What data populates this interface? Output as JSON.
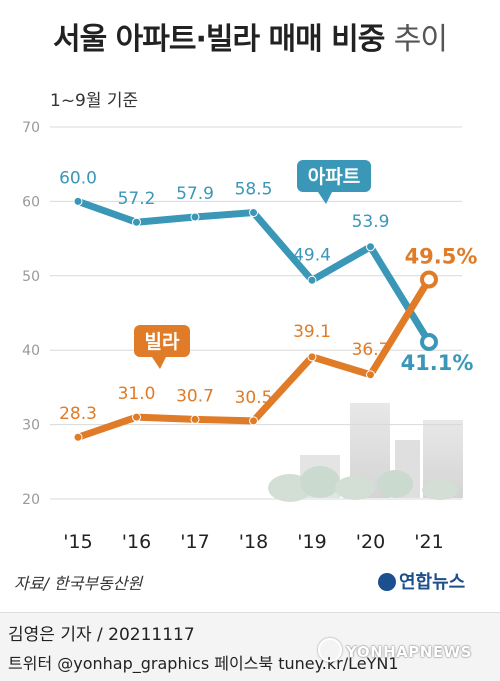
{
  "header": {
    "title_main": "서울 아파트·빌라 매매 비중",
    "title_light": "추이",
    "subtitle": "1~9월 기준"
  },
  "footer": {
    "source": "자료/ 한국부동산원",
    "logo": "연합뉴스",
    "credit_line1": "김영은 기자 / 20211117",
    "credit_line2": "트위터 @yonhap_graphics  페이스북 tuney.kr/LeYN1",
    "watermark": "YONHAPNEWS"
  },
  "colors": {
    "apartment": "#3a97b8",
    "villa": "#e07b27",
    "grid": "#d9d9d9",
    "axis_text": "#999999"
  },
  "chart_data": {
    "type": "line",
    "categories": [
      "'15",
      "'16",
      "'17",
      "'18",
      "'19",
      "'20",
      "'21"
    ],
    "series": [
      {
        "name": "아파트",
        "values": [
          60.0,
          57.2,
          57.9,
          58.5,
          49.4,
          53.9,
          41.1
        ],
        "labels": [
          "60.0",
          "57.2",
          "57.9",
          "58.5",
          "49.4",
          "53.9",
          "41.1%"
        ]
      },
      {
        "name": "빌라",
        "values": [
          28.3,
          31.0,
          30.7,
          30.5,
          39.1,
          36.7,
          49.5
        ],
        "labels": [
          "28.3",
          "31.0",
          "30.7",
          "30.5",
          "39.1",
          "36.7",
          "49.5%"
        ]
      }
    ],
    "ylim": [
      20,
      70
    ],
    "yticks": [
      20,
      30,
      40,
      50,
      60,
      70
    ],
    "grid": true,
    "legend": "callout-labels"
  }
}
